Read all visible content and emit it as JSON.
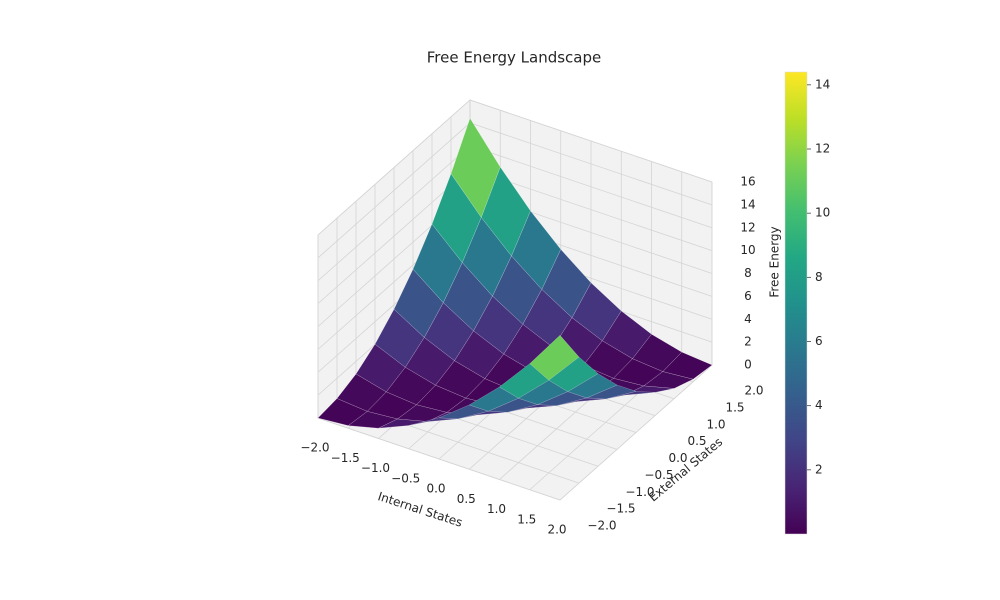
{
  "chart_data": {
    "type": "surface",
    "title": "Free Energy Landscape",
    "x_label": "Internal States",
    "y_label": "External States",
    "z_label": "Free Energy",
    "x": [
      -2,
      -1.5,
      -1,
      -0.5,
      0,
      0.5,
      1,
      1.5,
      2
    ],
    "y": [
      -2,
      -1.5,
      -1,
      -0.5,
      0,
      0.5,
      1,
      1.5,
      2
    ],
    "z": [
      [
        0,
        0.23,
        0.9,
        2.03,
        3.6,
        5.63,
        8.1,
        11.03,
        14.4
      ],
      [
        0.23,
        0,
        0.23,
        0.9,
        2.03,
        3.6,
        5.63,
        8.1,
        11.03
      ],
      [
        0.9,
        0.23,
        0,
        0.23,
        0.9,
        2.03,
        3.6,
        5.63,
        8.1
      ],
      [
        2.03,
        0.9,
        0.23,
        0,
        0.23,
        0.9,
        2.03,
        3.6,
        5.63
      ],
      [
        3.6,
        2.03,
        0.9,
        0.23,
        0,
        0.23,
        0.9,
        2.03,
        3.6
      ],
      [
        5.63,
        3.6,
        2.03,
        0.9,
        0.23,
        0,
        0.23,
        0.9,
        2.03
      ],
      [
        8.1,
        5.63,
        3.6,
        2.03,
        0.9,
        0.23,
        0,
        0.23,
        0.9
      ],
      [
        11.03,
        8.1,
        5.63,
        3.6,
        2.03,
        0.9,
        0.23,
        0,
        0.23
      ],
      [
        14.4,
        11.03,
        8.1,
        5.63,
        3.6,
        2.03,
        0.9,
        0.23,
        0
      ]
    ],
    "colormap": "viridis",
    "xlim": [
      -2,
      2
    ],
    "ylim": [
      -2,
      2
    ],
    "zlim": [
      0,
      16
    ],
    "xticks": [
      {
        "value": -2,
        "label": "−2.0"
      },
      {
        "value": -1.5,
        "label": "−1.5"
      },
      {
        "value": -1,
        "label": "−1.0"
      },
      {
        "value": -0.5,
        "label": "−0.5"
      },
      {
        "value": 0,
        "label": "0.0"
      },
      {
        "value": 0.5,
        "label": "0.5"
      },
      {
        "value": 1,
        "label": "1.0"
      },
      {
        "value": 1.5,
        "label": "1.5"
      },
      {
        "value": 2,
        "label": "2.0"
      }
    ],
    "yticks": [
      {
        "value": -2,
        "label": "−2.0"
      },
      {
        "value": -1.5,
        "label": "−1.5"
      },
      {
        "value": -1,
        "label": "−1.0"
      },
      {
        "value": -0.5,
        "label": "−0.5"
      },
      {
        "value": 0,
        "label": "0.0"
      },
      {
        "value": 0.5,
        "label": "0.5"
      },
      {
        "value": 1,
        "label": "1.0"
      },
      {
        "value": 1.5,
        "label": "1.5"
      },
      {
        "value": 2,
        "label": "2.0"
      }
    ],
    "zticks": [
      0,
      2,
      4,
      6,
      8,
      10,
      12,
      14,
      16
    ],
    "colorbar_ticks": [
      2,
      4,
      6,
      8,
      10,
      12,
      14
    ],
    "grid": true
  }
}
